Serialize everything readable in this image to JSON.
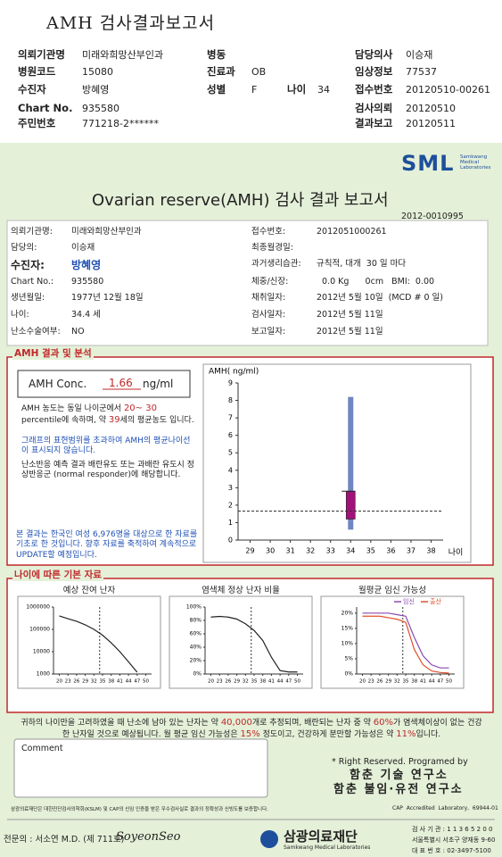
{
  "header": {
    "title": "AMH 검사결과보고서",
    "fields": [
      {
        "label": "의뢰기관명",
        "value": "미래와희망산부인과"
      },
      {
        "label": "병동"
      },
      {
        "label": "담당의사",
        "value": "이승재"
      },
      {
        "label": "병원코드",
        "value": "15080"
      },
      {
        "label": "진료과",
        "value": "OB"
      },
      {
        "label": "임상정보",
        "value": "77537"
      },
      {
        "label": "수진자",
        "value": "방혜영"
      },
      {
        "label": "성별",
        "value": "F"
      },
      {
        "label": "나이",
        "value": 34
      },
      {
        "label": "접수번호",
        "value": "20120510-00261"
      },
      {
        "label": "Chart No.",
        "value": "935580"
      },
      {
        "label": "검사의뢰",
        "value": "20120510"
      },
      {
        "label": "주민번호",
        "value": "771218-2******"
      },
      {
        "label": "결과보고",
        "value": "20120511"
      }
    ]
  },
  "report": {
    "logo": "SML",
    "logo_sub": "Samkwang Medical Laboratories",
    "title": "Ovarian reserve(AMH) 검사 결과 보고서",
    "number": "2012-0010995",
    "left": [
      {
        "label": "의뢰기관명:",
        "value": "미래와희망산부인과"
      },
      {
        "label": "담당의:",
        "value": "이승재"
      },
      {
        "label": "수진자:",
        "value": "방혜영"
      },
      {
        "label": "Chart No.:",
        "value": "935580"
      },
      {
        "label": "생년월일:",
        "value": "1977년 12월 18일"
      },
      {
        "label": "나이:",
        "value": "34.4 세"
      },
      {
        "label": "난소수술여부:",
        "value": "NO"
      }
    ],
    "right": [
      {
        "label": "접수번호:",
        "value": "2012051000261"
      },
      {
        "label": "최종월경일:"
      },
      {
        "label": "과거생리습관:",
        "value": "규칙적, 대개  30 일 마다"
      },
      {
        "label": "체중/신장:",
        "value": "  0.0 Kg      0cm   BMI:  0.00"
      },
      {
        "label": "채취일자:",
        "value": "2012년 5월 10일  (MCD # 0 일)"
      },
      {
        "label": "검사일자:",
        "value": "2012년 5월 11일"
      },
      {
        "label": "보고일자:",
        "value": "2012년 5월 11일"
      }
    ],
    "amh": {
      "section_title": "AMH 결과 및 분석",
      "label": "AMH Conc.",
      "value": 1.66,
      "unit": "ng/ml",
      "para1": [
        "AMH 농도는 동일 나이군에서 ",
        "20~ 30",
        " percentile에 속하며, 약 ",
        "39",
        "세의 평균농도 입니다."
      ],
      "para2": "그래프의 표현범위를 초과하여 AMH의 평균나이선이 표시되지 않습니다.",
      "para3": "난소반응 예측 결과 배란유도 또는 과배란 유도시 정상반응군 (normal responder)에 해당합니다.",
      "para4": "본 결과는 한국인 여성 6,976명을 대상으로 한 자료를 기초로 한 것입니다. 향후 자료를 축적하여 계속적으로 UPDATE할 예정입니다.",
      "chart": {
        "type": "box",
        "ylabel": "AMH( ng/ml)",
        "xlabel": "나이",
        "xlim": [
          28.4,
          38.6
        ],
        "xticks": [
          29,
          30,
          31,
          32,
          33,
          34,
          35,
          36,
          37,
          38
        ],
        "ylim": [
          0,
          9
        ],
        "yticks": [
          0,
          1,
          2,
          3,
          4,
          5,
          6,
          7,
          8,
          9
        ],
        "boxes": [
          {
            "x": 34,
            "low": 0.6,
            "q1": 1.2,
            "q3": 2.8,
            "high": 8.2,
            "color": "#a0127a",
            "whisker_color": "#6f86c2"
          }
        ]
      }
    },
    "basic": {
      "section_title": "나이에 따른 기본 자료",
      "charts": [
        {
          "type": "line",
          "title": "예상 잔여 난자",
          "log_scale": true,
          "xlim": [
            18,
            52
          ],
          "xticks": [
            20,
            23,
            26,
            29,
            32,
            35,
            38,
            41,
            44,
            47,
            50
          ],
          "ylim": [
            1000,
            1000000
          ],
          "yticks": [
            1000,
            10000,
            100000,
            1000000
          ],
          "x": [
            20,
            23,
            26,
            29,
            32,
            35,
            38,
            41,
            44,
            47
          ],
          "series": [
            {
              "color": "#222222",
              "values": [
                400000,
                300000,
                230000,
                160000,
                100000,
                55000,
                25000,
                10000,
                3500,
                1200
              ]
            }
          ]
        },
        {
          "type": "line",
          "title": "염색체 정상 난자 비율",
          "log_scale": false,
          "xlim": [
            18,
            52
          ],
          "xticks": [
            20,
            23,
            26,
            29,
            32,
            35,
            38,
            41,
            44,
            47,
            50
          ],
          "ylim": [
            0,
            100
          ],
          "yticks": [
            {
              "value": 0,
              "label": "0%"
            },
            {
              "value": 20,
              "label": "20%"
            },
            {
              "value": 40,
              "label": "40%"
            },
            {
              "value": 60,
              "label": "60%"
            },
            {
              "value": 80,
              "label": "80%"
            },
            {
              "value": 100,
              "label": "100%"
            }
          ],
          "x": [
            20,
            23,
            26,
            29,
            32,
            35,
            38,
            41,
            44,
            47,
            50
          ],
          "series": [
            {
              "color": "#222222",
              "values": [
                85,
                86,
                85,
                82,
                75,
                65,
                50,
                25,
                5,
                3,
                3
              ]
            }
          ]
        },
        {
          "type": "line",
          "title": "월평균 임신 가능성",
          "log_scale": false,
          "xlim": [
            18,
            52
          ],
          "xticks": [
            20,
            23,
            26,
            29,
            32,
            35,
            38,
            41,
            44,
            47,
            50
          ],
          "ylim": [
            0,
            22
          ],
          "yticks": [
            {
              "value": 0,
              "label": "0%"
            },
            {
              "value": 5,
              "label": "5%"
            },
            {
              "value": 10,
              "label": "10%"
            },
            {
              "value": 15,
              "label": "15%"
            },
            {
              "value": 20,
              "label": "20%"
            }
          ],
          "x": [
            20,
            23,
            26,
            29,
            32,
            35,
            38,
            41,
            44,
            47,
            50
          ],
          "series": [
            {
              "name": "임신",
              "color": "#8a4bb0",
              "values": [
                20,
                20,
                20,
                20,
                19.5,
                19,
                12,
                6,
                3,
                2,
                2
              ]
            },
            {
              "name": "출산",
              "color": "#e0502a",
              "values": [
                19,
                19,
                19,
                18.5,
                18,
                17,
                8,
                3,
                1,
                0.5,
                0.3
              ]
            }
          ]
        }
      ],
      "summary": [
        "귀하의 나이만을 고려하였을 때 난소에 남아 있는 난자는 약 ",
        "40,000",
        "개로 추정되며, 배란되는 난자 중 약 ",
        "60%",
        "가 염색체이상이 없는 건강한 난자일 것으로 예상됩니다. 월 평균 임신 가능성은 ",
        "15%",
        " 정도이고, 건강하게 분만할 가능성은 약 ",
        "11%",
        "입니다."
      ]
    },
    "comment_label": "Comment",
    "rights": "* Right Reserved. Programed by",
    "lab1": "함춘 기술 연구소",
    "lab2": "함춘 불임·유전 연구소"
  },
  "footer": {
    "note": "삼광의료재단은 대한진단검사의학회(KSLM) 및 CAP의 신임 인증을 받은 우수검사실로 결과의 정확성과 신빙도를 보증합니다.",
    "cap": "CAP  Accredited  Laboratory,  69944-01",
    "doctor": "전문의 : 서소연 M.D. (제 711호)",
    "signature": "SoyeonSeo",
    "org": "삼광의료재단",
    "org_sub": "Samkwang Medical Laboratories",
    "code": "검 사 기 관 : 1 1 3 6 5 2 0 0",
    "address": "서울특별시 서초구 양재동 9-60",
    "phone": "대 표 번 호 : 02-3497-5100"
  }
}
